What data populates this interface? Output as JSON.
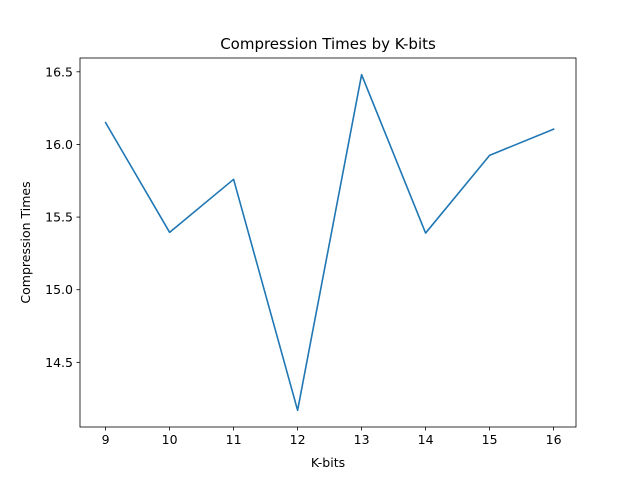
{
  "chart_data": {
    "type": "line",
    "title": "Compression Times by K-bits",
    "xlabel": "K-bits",
    "ylabel": "Compression Times",
    "x": [
      9,
      10,
      11,
      12,
      13,
      14,
      15,
      16
    ],
    "series": [
      {
        "values": [
          16.15,
          15.395,
          15.76,
          14.17,
          16.48,
          15.39,
          15.925,
          16.105
        ],
        "color": "#1f77b4"
      }
    ],
    "xlim": [
      8.6,
      16.35
    ],
    "ylim": [
      14.055,
      16.595
    ],
    "xticks": [
      9,
      10,
      11,
      12,
      13,
      14,
      15,
      16
    ],
    "yticks": [
      14.5,
      15.0,
      15.5,
      16.0,
      16.5
    ],
    "ytick_labels": [
      "14.5",
      "15.0",
      "15.5",
      "16.0",
      "16.5"
    ],
    "grid": false,
    "legend": "none"
  }
}
